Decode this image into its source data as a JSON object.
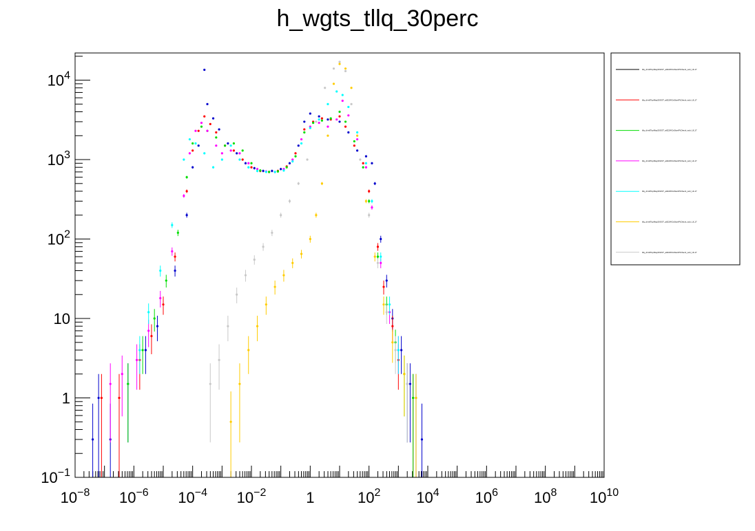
{
  "chart_data": {
    "type": "scatter",
    "title": "h_wgts_tllq_30perc",
    "xlabel": "",
    "ylabel": "",
    "x_scale": "log",
    "y_scale": "log",
    "xlim": [
      1e-08,
      10000000000.0
    ],
    "ylim": [
      0.1,
      22000
    ],
    "grid": false,
    "legend_position": "right",
    "x_tick_labels": [
      {
        "v": 1e-08,
        "base": "10",
        "exp": "−8"
      },
      {
        "v": 1e-06,
        "base": "10",
        "exp": "−6"
      },
      {
        "v": 0.0001,
        "base": "10",
        "exp": "−4"
      },
      {
        "v": 0.01,
        "base": "10",
        "exp": "−2"
      },
      {
        "v": 1,
        "base": "1",
        "exp": ""
      },
      {
        "v": 100.0,
        "base": "10",
        "exp": "2"
      },
      {
        "v": 10000.0,
        "base": "10",
        "exp": "4"
      },
      {
        "v": 1000000.0,
        "base": "10",
        "exp": "6"
      },
      {
        "v": 100000000.0,
        "base": "10",
        "exp": "8"
      },
      {
        "v": 10000000000.0,
        "base": "10",
        "exp": "10"
      }
    ],
    "y_tick_labels": [
      {
        "v": 0.1,
        "base": "10",
        "exp": "−1"
      },
      {
        "v": 1,
        "base": "1",
        "exp": ""
      },
      {
        "v": 10,
        "base": "10",
        "exp": ""
      },
      {
        "v": 100,
        "base": "10",
        "exp": "2"
      },
      {
        "v": 1000,
        "base": "10",
        "exp": "3"
      },
      {
        "v": 10000,
        "base": "10",
        "exp": "4"
      }
    ],
    "series": [
      {
        "color": "#0000cc",
        "points": [
          [
            -7.4,
            0.3
          ],
          [
            -7.2,
            1.0
          ],
          [
            -6.8,
            0.3
          ],
          [
            -6.2,
            1.5
          ],
          [
            -5.6,
            4
          ],
          [
            -5.2,
            8
          ],
          [
            -4.6,
            40
          ],
          [
            -4.2,
            200
          ],
          [
            -4.0,
            800
          ],
          [
            -3.8,
            1500
          ],
          [
            -3.6,
            13500
          ],
          [
            -3.5,
            5000
          ],
          [
            -3.3,
            3300
          ],
          [
            -3.1,
            2400
          ],
          [
            -2.8,
            1600
          ],
          [
            -2.5,
            1200
          ],
          [
            -2.2,
            900
          ],
          [
            -1.9,
            780
          ],
          [
            -1.6,
            720
          ],
          [
            -1.3,
            720
          ],
          [
            -1.0,
            760
          ],
          [
            -0.7,
            900
          ],
          [
            -0.4,
            1500
          ],
          [
            -0.2,
            3000
          ],
          [
            0.0,
            3800
          ],
          [
            0.3,
            3500
          ],
          [
            0.6,
            3200
          ],
          [
            1.0,
            3000
          ],
          [
            1.3,
            2200
          ],
          [
            1.6,
            1300
          ],
          [
            1.9,
            1100
          ],
          [
            2.1,
            900
          ],
          [
            2.2,
            500
          ],
          [
            2.4,
            100
          ],
          [
            2.6,
            30
          ],
          [
            2.8,
            10
          ],
          [
            3.1,
            4
          ],
          [
            3.4,
            1.5
          ],
          [
            3.6,
            1
          ],
          [
            3.8,
            0.3
          ]
        ]
      },
      {
        "color": "#ff0000",
        "points": [
          [
            -7.1,
            1.0
          ],
          [
            -6.5,
            1.0
          ],
          [
            -5.8,
            3
          ],
          [
            -5.4,
            6
          ],
          [
            -5.0,
            15
          ],
          [
            -4.6,
            60
          ],
          [
            -4.2,
            400
          ],
          [
            -4.0,
            1300
          ],
          [
            -3.8,
            2300
          ],
          [
            -3.6,
            3500
          ],
          [
            -3.4,
            2800
          ],
          [
            -3.2,
            2200
          ],
          [
            -2.9,
            1500
          ],
          [
            -2.6,
            1300
          ],
          [
            -2.3,
            1000
          ],
          [
            -2.0,
            800
          ],
          [
            -1.7,
            720
          ],
          [
            -1.4,
            700
          ],
          [
            -1.1,
            720
          ],
          [
            -0.8,
            820
          ],
          [
            -0.5,
            1200
          ],
          [
            -0.2,
            2400
          ],
          [
            0.1,
            3000
          ],
          [
            0.4,
            3300
          ],
          [
            0.7,
            3200
          ],
          [
            1.0,
            3500
          ],
          [
            1.2,
            2600
          ],
          [
            1.5,
            1500
          ],
          [
            1.8,
            900
          ],
          [
            2.0,
            400
          ],
          [
            2.3,
            80
          ],
          [
            2.5,
            25
          ],
          [
            2.8,
            8
          ],
          [
            3.0,
            3
          ],
          [
            3.3,
            1.5
          ],
          [
            3.5,
            1
          ]
        ]
      },
      {
        "color": "#00dd00",
        "points": [
          [
            -6.2,
            1.5
          ],
          [
            -5.7,
            4
          ],
          [
            -5.3,
            10
          ],
          [
            -4.9,
            30
          ],
          [
            -4.5,
            120
          ],
          [
            -4.2,
            600
          ],
          [
            -4.0,
            1600
          ],
          [
            -3.7,
            2600
          ],
          [
            -3.5,
            2300
          ],
          [
            -3.2,
            1900
          ],
          [
            -2.9,
            1500
          ],
          [
            -2.6,
            1600
          ],
          [
            -2.3,
            1300
          ],
          [
            -2.0,
            900
          ],
          [
            -1.7,
            730
          ],
          [
            -1.4,
            700
          ],
          [
            -1.1,
            710
          ],
          [
            -0.8,
            800
          ],
          [
            -0.5,
            1100
          ],
          [
            -0.2,
            2200
          ],
          [
            0.1,
            2900
          ],
          [
            0.4,
            3100
          ],
          [
            0.7,
            3300
          ],
          [
            1.0,
            4000
          ],
          [
            1.2,
            3000
          ],
          [
            1.5,
            1700
          ],
          [
            1.8,
            800
          ],
          [
            2.0,
            300
          ],
          [
            2.3,
            60
          ],
          [
            2.6,
            15
          ],
          [
            2.9,
            5
          ],
          [
            3.2,
            2
          ],
          [
            3.5,
            1
          ]
        ]
      },
      {
        "color": "#ff00ff",
        "points": [
          [
            -6.8,
            1.5
          ],
          [
            -6.4,
            2
          ],
          [
            -5.9,
            3
          ],
          [
            -5.5,
            7
          ],
          [
            -5.1,
            18
          ],
          [
            -4.7,
            70
          ],
          [
            -4.3,
            350
          ],
          [
            -4.1,
            1200
          ],
          [
            -3.9,
            2300
          ],
          [
            -3.7,
            2900
          ],
          [
            -3.5,
            2300
          ],
          [
            -3.2,
            1500
          ],
          [
            -3.0,
            1200
          ],
          [
            -2.7,
            1300
          ],
          [
            -2.4,
            1200
          ],
          [
            -2.1,
            900
          ],
          [
            -1.8,
            760
          ],
          [
            -1.5,
            710
          ],
          [
            -1.2,
            700
          ],
          [
            -0.9,
            760
          ],
          [
            -0.6,
            1000
          ],
          [
            -0.3,
            1800
          ],
          [
            0.0,
            2600
          ],
          [
            0.3,
            2900
          ],
          [
            0.6,
            2600
          ],
          [
            0.9,
            3200
          ],
          [
            1.1,
            5500
          ],
          [
            1.3,
            3600
          ],
          [
            1.6,
            1800
          ],
          [
            1.9,
            800
          ],
          [
            2.1,
            250
          ],
          [
            2.4,
            50
          ],
          [
            2.7,
            12
          ],
          [
            3.0,
            4
          ],
          [
            3.3,
            1.5
          ]
        ]
      },
      {
        "color": "#00ffff",
        "points": [
          [
            -5.8,
            4
          ],
          [
            -5.5,
            12
          ],
          [
            -5.1,
            40
          ],
          [
            -4.7,
            150
          ],
          [
            -4.3,
            1000
          ],
          [
            -4.1,
            1800
          ],
          [
            -3.9,
            1600
          ],
          [
            -3.6,
            1200
          ],
          [
            -3.3,
            800
          ],
          [
            -3.0,
            1000
          ],
          [
            -2.7,
            1500
          ],
          [
            -2.4,
            1000
          ],
          [
            -2.1,
            800
          ],
          [
            -1.8,
            720
          ],
          [
            -1.5,
            700
          ],
          [
            -1.2,
            700
          ],
          [
            -0.9,
            730
          ],
          [
            -0.6,
            950
          ],
          [
            -0.3,
            1600
          ],
          [
            0.0,
            2500
          ],
          [
            0.3,
            3200
          ],
          [
            0.6,
            5000
          ],
          [
            0.9,
            7200
          ],
          [
            1.1,
            6500
          ],
          [
            1.3,
            4600
          ],
          [
            1.6,
            2200
          ],
          [
            1.9,
            900
          ],
          [
            2.1,
            300
          ],
          [
            2.4,
            60
          ],
          [
            2.7,
            15
          ],
          [
            3.0,
            4
          ],
          [
            3.3,
            1.5
          ]
        ]
      },
      {
        "color": "#ffcc00",
        "points": [
          [
            -2.7,
            0.5
          ],
          [
            -2.4,
            1.5
          ],
          [
            -2.1,
            4
          ],
          [
            -1.8,
            8
          ],
          [
            -1.5,
            15
          ],
          [
            -1.2,
            25
          ],
          [
            -0.9,
            35
          ],
          [
            -0.6,
            50
          ],
          [
            -0.3,
            65
          ],
          [
            0.0,
            100
          ],
          [
            0.2,
            200
          ],
          [
            0.4,
            500
          ],
          [
            0.6,
            2000
          ],
          [
            0.8,
            9000
          ],
          [
            1.0,
            16000
          ],
          [
            1.2,
            14000
          ],
          [
            1.4,
            8000
          ],
          [
            1.6,
            2000
          ],
          [
            1.9,
            300
          ],
          [
            2.2,
            60
          ],
          [
            2.5,
            15
          ],
          [
            2.8,
            5
          ],
          [
            3.2,
            2
          ],
          [
            3.6,
            1
          ]
        ]
      },
      {
        "color": "#c8c8c8",
        "points": [
          [
            -3.4,
            1.5
          ],
          [
            -3.1,
            3
          ],
          [
            -2.8,
            8
          ],
          [
            -2.5,
            20
          ],
          [
            -2.2,
            35
          ],
          [
            -1.9,
            55
          ],
          [
            -1.6,
            80
          ],
          [
            -1.3,
            120
          ],
          [
            -1.0,
            200
          ],
          [
            -0.7,
            300
          ],
          [
            -0.4,
            500
          ],
          [
            -0.1,
            1000
          ],
          [
            0.2,
            3000
          ],
          [
            0.5,
            8000
          ],
          [
            0.8,
            14000
          ],
          [
            1.0,
            17000
          ],
          [
            1.2,
            13000
          ],
          [
            1.4,
            5000
          ],
          [
            1.7,
            1000
          ],
          [
            2.0,
            200
          ],
          [
            2.3,
            50
          ],
          [
            2.6,
            12
          ],
          [
            2.9,
            4
          ],
          [
            3.3,
            1.5
          ]
        ]
      }
    ]
  },
  "legend": {
    "entries": [
      {
        "color": "#000000",
        "label": "tllq_dim6TopMay20GST_all22WCsStartPtCheck_sub_UL17"
      },
      {
        "color": "#ff0000",
        "label": "tllq_dim6TopMay20GST_all22WCsStartPtCheck_sub_UL17"
      },
      {
        "color": "#00dd00",
        "label": "tllq_dim6TopMay20GST_all22WCsStartPtCheck_sub_UL17"
      },
      {
        "color": "#ff00ff",
        "label": "tllq_dim6TopMay20GST_all22WCsStartPtCheck_sub_UL17"
      },
      {
        "color": "#00ffff",
        "label": "tllq_dim6TopMay20GST_all22WCsStartPtCheck_sub_UL17"
      },
      {
        "color": "#ffcc00",
        "label": "tllq_dim6TopMay20GST_all22WCsStartPtCheck_sub_UL17"
      },
      {
        "color": "#c8c8c8",
        "label": "tllq_dim6TopMay20GST_all22WCsStartPtCheck_sub_UL17"
      }
    ]
  }
}
